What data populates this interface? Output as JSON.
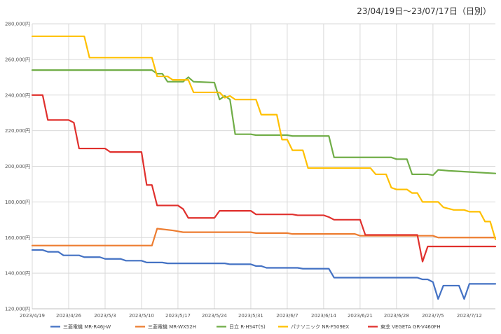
{
  "header": {
    "subtitle": "23/04/19日～23/07/17日（日別）"
  },
  "chart_data": {
    "type": "line",
    "title": "",
    "xlabel": "",
    "ylabel": "",
    "ylim": [
      120000,
      280000
    ],
    "y_ticks": [
      120000,
      140000,
      160000,
      180000,
      200000,
      220000,
      240000,
      260000,
      280000
    ],
    "y_tick_labels": [
      "120,000円",
      "140,000円",
      "160,000円",
      "180,000円",
      "200,000円",
      "220,000円",
      "240,000円",
      "260,000円",
      "280,000円"
    ],
    "x_start": "2023-04-19",
    "x_end": "2023-07-17",
    "x_ticks": [
      "2023-04-19",
      "2023-04-26",
      "2023-05-03",
      "2023-05-10",
      "2023-05-17",
      "2023-05-24",
      "2023-05-31",
      "2023-06-07",
      "2023-06-14",
      "2023-06-21",
      "2023-06-28",
      "2023-07-05",
      "2023-07-12"
    ],
    "x_tick_labels": [
      "2023/4/19",
      "2023/4/26",
      "2023/5/3",
      "2023/5/10",
      "2023/5/17",
      "2023/5/24",
      "2023/5/31",
      "2023/6/7",
      "2023/6/14",
      "2023/6/21",
      "2023/6/28",
      "2023/7/5",
      "2023/7/12"
    ],
    "grid": true,
    "legend_position": "bottom",
    "series": [
      {
        "name": "三菱電機 MR-R46J-W",
        "color": "#4472C4",
        "points": [
          [
            "2023-04-19",
            153000
          ],
          [
            "2023-04-21",
            153000
          ],
          [
            "2023-04-22",
            152000
          ],
          [
            "2023-04-24",
            152000
          ],
          [
            "2023-04-25",
            150000
          ],
          [
            "2023-04-28",
            150000
          ],
          [
            "2023-04-29",
            149000
          ],
          [
            "2023-05-02",
            149000
          ],
          [
            "2023-05-03",
            148000
          ],
          [
            "2023-05-06",
            148000
          ],
          [
            "2023-05-07",
            147000
          ],
          [
            "2023-05-10",
            147000
          ],
          [
            "2023-05-11",
            146000
          ],
          [
            "2023-05-14",
            146000
          ],
          [
            "2023-05-15",
            145500
          ],
          [
            "2023-05-26",
            145500
          ],
          [
            "2023-05-27",
            145000
          ],
          [
            "2023-05-31",
            145000
          ],
          [
            "2023-06-01",
            144000
          ],
          [
            "2023-06-02",
            144000
          ],
          [
            "2023-06-03",
            143000
          ],
          [
            "2023-06-09",
            143000
          ],
          [
            "2023-06-10",
            142500
          ],
          [
            "2023-06-15",
            142500
          ],
          [
            "2023-06-16",
            137500
          ],
          [
            "2023-07-02",
            137500
          ],
          [
            "2023-07-03",
            136500
          ],
          [
            "2023-07-04",
            136500
          ],
          [
            "2023-07-05",
            135000
          ],
          [
            "2023-07-06",
            125500
          ],
          [
            "2023-07-07",
            133000
          ],
          [
            "2023-07-10",
            133000
          ],
          [
            "2023-07-11",
            125500
          ],
          [
            "2023-07-12",
            134000
          ],
          [
            "2023-07-17",
            134000
          ]
        ]
      },
      {
        "name": "三菱電機 MR-WX52H",
        "color": "#ED7D31",
        "points": [
          [
            "2023-04-19",
            155500
          ],
          [
            "2023-05-12",
            155500
          ],
          [
            "2023-05-13",
            165000
          ],
          [
            "2023-05-16",
            164000
          ],
          [
            "2023-05-18",
            163000
          ],
          [
            "2023-05-31",
            163000
          ],
          [
            "2023-06-01",
            162500
          ],
          [
            "2023-06-07",
            162500
          ],
          [
            "2023-06-08",
            162000
          ],
          [
            "2023-06-20",
            162000
          ],
          [
            "2023-06-21",
            161000
          ],
          [
            "2023-07-05",
            161000
          ],
          [
            "2023-07-06",
            160000
          ],
          [
            "2023-07-17",
            160000
          ]
        ]
      },
      {
        "name": "日立 R-HS4T(S)",
        "color": "#70AD47",
        "points": [
          [
            "2023-04-19",
            254000
          ],
          [
            "2023-05-12",
            254000
          ],
          [
            "2023-05-13",
            252000
          ],
          [
            "2023-05-14",
            252000
          ],
          [
            "2023-05-15",
            247500
          ],
          [
            "2023-05-18",
            247500
          ],
          [
            "2023-05-19",
            250000
          ],
          [
            "2023-05-20",
            247500
          ],
          [
            "2023-05-24",
            247000
          ],
          [
            "2023-05-25",
            237500
          ],
          [
            "2023-05-26",
            239500
          ],
          [
            "2023-05-27",
            237500
          ],
          [
            "2023-05-28",
            218000
          ],
          [
            "2023-05-31",
            218000
          ],
          [
            "2023-06-01",
            217500
          ],
          [
            "2023-06-07",
            217500
          ],
          [
            "2023-06-08",
            217000
          ],
          [
            "2023-06-15",
            217000
          ],
          [
            "2023-06-16",
            205000
          ],
          [
            "2023-06-27",
            205000
          ],
          [
            "2023-06-28",
            204000
          ],
          [
            "2023-06-30",
            204000
          ],
          [
            "2023-07-01",
            195500
          ],
          [
            "2023-07-04",
            195500
          ],
          [
            "2023-07-05",
            195000
          ],
          [
            "2023-07-06",
            198000
          ],
          [
            "2023-07-08",
            197500
          ],
          [
            "2023-07-11",
            197000
          ],
          [
            "2023-07-17",
            196000
          ]
        ]
      },
      {
        "name": "パナソニック NR-F509EX",
        "color": "#FFC000",
        "points": [
          [
            "2023-04-19",
            273000
          ],
          [
            "2023-04-29",
            273000
          ],
          [
            "2023-04-30",
            261000
          ],
          [
            "2023-05-12",
            261000
          ],
          [
            "2023-05-13",
            250500
          ],
          [
            "2023-05-15",
            250500
          ],
          [
            "2023-05-16",
            248500
          ],
          [
            "2023-05-19",
            248500
          ],
          [
            "2023-05-20",
            241500
          ],
          [
            "2023-05-25",
            241500
          ],
          [
            "2023-05-26",
            238500
          ],
          [
            "2023-05-27",
            239500
          ],
          [
            "2023-05-28",
            237500
          ],
          [
            "2023-06-01",
            237500
          ],
          [
            "2023-06-02",
            229000
          ],
          [
            "2023-06-05",
            229000
          ],
          [
            "2023-06-06",
            215000
          ],
          [
            "2023-06-07",
            215000
          ],
          [
            "2023-06-08",
            209000
          ],
          [
            "2023-06-10",
            209000
          ],
          [
            "2023-06-11",
            199000
          ],
          [
            "2023-06-23",
            199000
          ],
          [
            "2023-06-24",
            195500
          ],
          [
            "2023-06-26",
            195500
          ],
          [
            "2023-06-27",
            188000
          ],
          [
            "2023-06-28",
            187000
          ],
          [
            "2023-06-30",
            187000
          ],
          [
            "2023-07-01",
            185000
          ],
          [
            "2023-07-02",
            185000
          ],
          [
            "2023-07-03",
            180000
          ],
          [
            "2023-07-06",
            180000
          ],
          [
            "2023-07-07",
            177000
          ],
          [
            "2023-07-09",
            175500
          ],
          [
            "2023-07-11",
            175500
          ],
          [
            "2023-07-12",
            174500
          ],
          [
            "2023-07-14",
            174500
          ],
          [
            "2023-07-15",
            169000
          ],
          [
            "2023-07-16",
            169000
          ],
          [
            "2023-07-17",
            159000
          ]
        ]
      },
      {
        "name": "東芝 VEGETA GR-V460FH",
        "color": "#E0302D",
        "points": [
          [
            "2023-04-19",
            240000
          ],
          [
            "2023-04-21",
            240000
          ],
          [
            "2023-04-22",
            226000
          ],
          [
            "2023-04-26",
            226000
          ],
          [
            "2023-04-27",
            224500
          ],
          [
            "2023-04-28",
            210000
          ],
          [
            "2023-05-03",
            210000
          ],
          [
            "2023-05-04",
            208000
          ],
          [
            "2023-05-10",
            208000
          ],
          [
            "2023-05-11",
            189500
          ],
          [
            "2023-05-12",
            189500
          ],
          [
            "2023-05-13",
            178000
          ],
          [
            "2023-05-17",
            178000
          ],
          [
            "2023-05-18",
            176000
          ],
          [
            "2023-05-19",
            171000
          ],
          [
            "2023-05-24",
            171000
          ],
          [
            "2023-05-25",
            175000
          ],
          [
            "2023-05-31",
            175000
          ],
          [
            "2023-06-01",
            173000
          ],
          [
            "2023-06-08",
            173000
          ],
          [
            "2023-06-09",
            172500
          ],
          [
            "2023-06-14",
            172500
          ],
          [
            "2023-06-15",
            171500
          ],
          [
            "2023-06-16",
            170000
          ],
          [
            "2023-06-21",
            170000
          ],
          [
            "2023-06-22",
            161500
          ],
          [
            "2023-07-02",
            161500
          ],
          [
            "2023-07-03",
            146500
          ],
          [
            "2023-07-04",
            155000
          ],
          [
            "2023-07-17",
            155000
          ]
        ]
      }
    ]
  }
}
